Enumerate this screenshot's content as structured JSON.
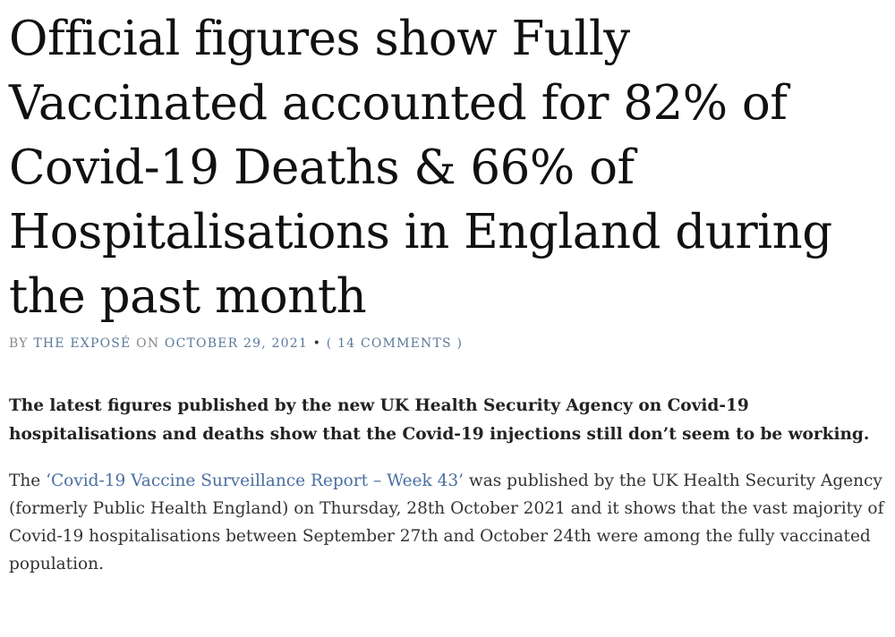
{
  "article": {
    "headline": "Official figures show Fully Vaccinated accounted for 82% of Covid-19 Deaths & 66% of Hospitalisations in England during the past month",
    "meta": {
      "by_prefix": "BY",
      "author": "THE EXPOSÉ",
      "on_prefix": "ON",
      "date": "OCTOBER 29, 2021",
      "separator": "•",
      "comments": "( 14 COMMENTS )"
    },
    "lead": "The latest figures published by the new UK Health Security Agency on Covid-19 hospitalisations and deaths show that the Covid-19 injections still don’t seem to be working.",
    "body": {
      "intro": "The ",
      "link_text": "‘Covid-19 Vaccine Surveillance Report – Week 43’",
      "rest": " was published by the UK Health Security Agency (formerly Public Health England) on Thursday, 28th October 2021 and it shows that the vast majority of Covid-19 hospitalisations between September 27th and October 24th were among the fully vaccinated population."
    }
  }
}
